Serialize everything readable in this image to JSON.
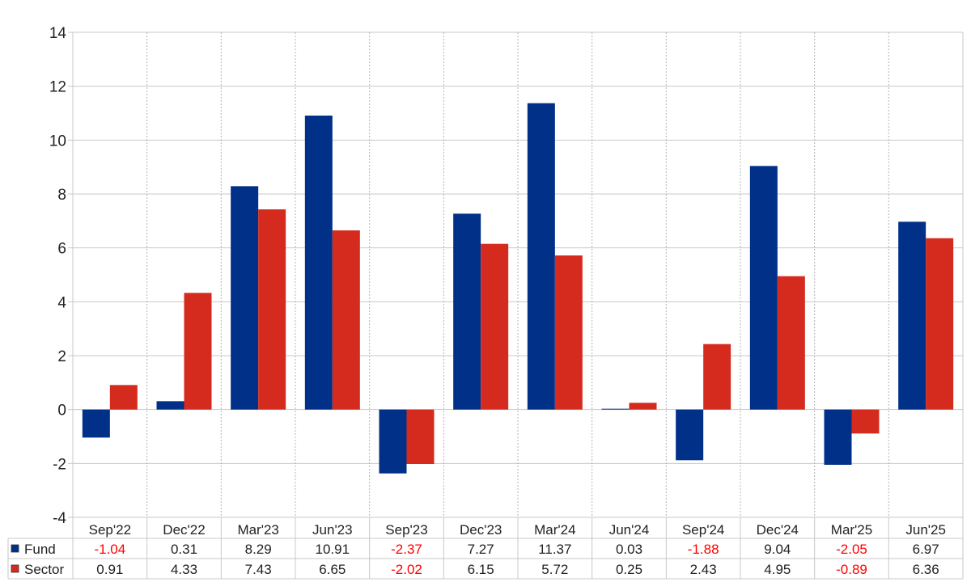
{
  "chart_data": {
    "type": "bar",
    "categories": [
      "Sep'22",
      "Dec'22",
      "Mar'23",
      "Jun'23",
      "Sep'23",
      "Dec'23",
      "Mar'24",
      "Jun'24",
      "Sep'24",
      "Dec'24",
      "Mar'25",
      "Jun'25"
    ],
    "series": [
      {
        "name": "Fund",
        "color": "#003087",
        "values": [
          -1.04,
          0.31,
          8.29,
          10.91,
          -2.37,
          7.27,
          11.37,
          0.03,
          -1.88,
          9.04,
          -2.05,
          6.97
        ]
      },
      {
        "name": "Sector",
        "color": "#d52b1e",
        "values": [
          0.91,
          4.33,
          7.43,
          6.65,
          -2.02,
          6.15,
          5.72,
          0.25,
          2.43,
          4.95,
          -0.89,
          6.36
        ]
      }
    ],
    "y_ticks": [
      "14",
      "12",
      "10",
      "8",
      "6",
      "4",
      "2",
      "0",
      "-2",
      "-4"
    ],
    "ylim": [
      -4,
      14
    ],
    "title": "",
    "xlabel": "",
    "ylabel": "",
    "grid": true,
    "legend": "data table below chart",
    "negative_value_color": "#ff0000"
  }
}
